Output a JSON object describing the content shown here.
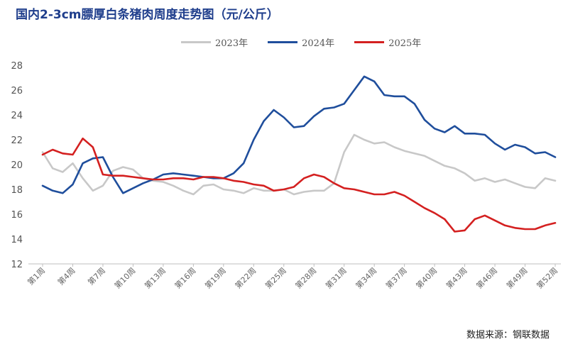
{
  "chart_data": {
    "type": "line",
    "title": "国内2-3cm膘厚白条猪肉周度走势图（元/公斤）",
    "ylim": [
      12,
      28
    ],
    "yticks": [
      12,
      14,
      16,
      18,
      20,
      22,
      24,
      26,
      28
    ],
    "xtick_labels": [
      "第1周",
      "第4周",
      "第7周",
      "第10周",
      "第13周",
      "第16周",
      "第19周",
      "第22周",
      "第25周",
      "第28周",
      "第31周",
      "第34周",
      "第37周",
      "第40周",
      "第43周",
      "第46周",
      "第49周",
      "第52周"
    ],
    "grid": false,
    "legend_position": "top-center",
    "source": "数据来源：钢联数据",
    "series": [
      {
        "name": "2023年",
        "color": "#c8c8c8",
        "values": [
          21.0,
          19.7,
          19.4,
          20.1,
          18.9,
          17.9,
          18.3,
          19.5,
          19.8,
          19.6,
          18.9,
          18.7,
          18.6,
          18.3,
          17.9,
          17.6,
          18.3,
          18.4,
          18.0,
          17.9,
          17.7,
          18.1,
          17.9,
          17.9,
          18.0,
          17.6,
          17.8,
          17.9,
          17.9,
          18.5,
          21.0,
          22.4,
          22.0,
          21.7,
          21.8,
          21.4,
          21.1,
          20.9,
          20.7,
          20.3,
          19.9,
          19.7,
          19.3,
          18.7,
          18.9,
          18.6,
          18.8,
          18.5,
          18.2,
          18.1,
          18.9,
          18.7
        ]
      },
      {
        "name": "2024年",
        "color": "#1f4e9c",
        "values": [
          18.3,
          17.9,
          17.7,
          18.4,
          20.1,
          20.5,
          20.6,
          19.0,
          17.7,
          18.1,
          18.5,
          18.8,
          19.2,
          19.3,
          19.2,
          19.1,
          19.0,
          18.9,
          18.9,
          19.3,
          20.1,
          22.0,
          23.5,
          24.4,
          23.8,
          23.0,
          23.1,
          23.9,
          24.5,
          24.6,
          24.9,
          26.0,
          27.1,
          26.7,
          25.6,
          25.5,
          25.5,
          24.9,
          23.6,
          22.9,
          22.6,
          23.1,
          22.5,
          22.5,
          22.4,
          21.7,
          21.2,
          21.6,
          21.4,
          20.9,
          21.0,
          20.6
        ]
      },
      {
        "name": "2025年",
        "color": "#d42020",
        "values": [
          20.8,
          21.2,
          20.9,
          20.8,
          22.1,
          21.4,
          19.2,
          19.1,
          19.1,
          19.0,
          18.9,
          18.8,
          18.8,
          18.9,
          18.9,
          18.8,
          19.0,
          19.0,
          18.9,
          18.7,
          18.6,
          18.4,
          18.3,
          17.9,
          18.0,
          18.2,
          18.9,
          19.2,
          19.0,
          18.5,
          18.1,
          18.0,
          17.8,
          17.6,
          17.6,
          17.8,
          17.5,
          17.0,
          16.5,
          16.1,
          15.6,
          14.6,
          14.7,
          15.6,
          15.9,
          15.5,
          15.1,
          14.9,
          14.8,
          14.8,
          15.1,
          15.3
        ]
      }
    ]
  }
}
